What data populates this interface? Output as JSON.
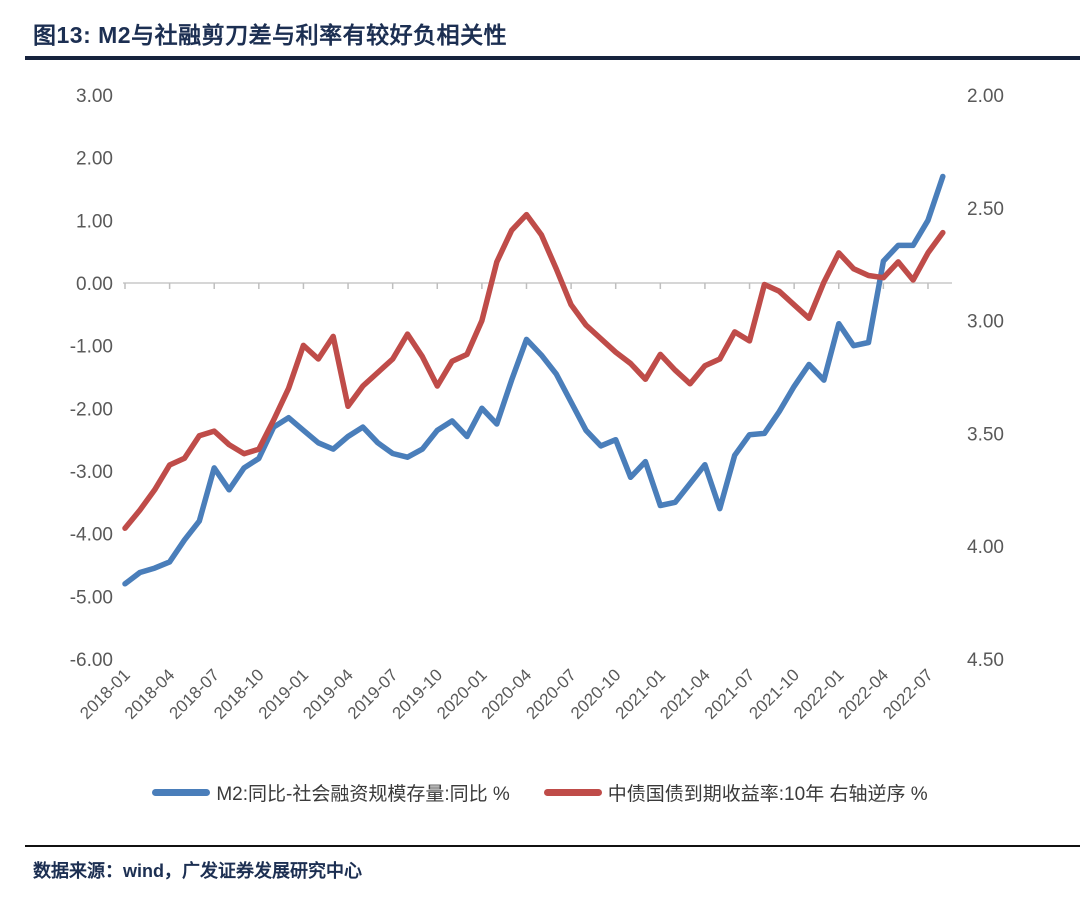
{
  "header": {
    "title": "图13:  M2与社融剪刀差与利率有较好负相关性"
  },
  "legend": {
    "items": [
      {
        "label": "M2:同比-社会融资规模存量:同比  %",
        "color": "#4a7eba"
      },
      {
        "label": "中债国债到期收益率:10年 右轴逆序 %",
        "color": "#bf4c49"
      }
    ]
  },
  "footer": {
    "source": "数据来源：wind，广发证券发展研究中心"
  },
  "colors": {
    "title": "#1c2f52",
    "axis_label": "#595959",
    "axis_line": "#d6d6d6",
    "tick_mark": "#bfbfbf",
    "series_blue": "#4a7eba",
    "series_red": "#bf4c49"
  },
  "chart_data": {
    "type": "line",
    "title": "M2与社融剪刀差与利率有较好负相关性",
    "x": [
      "2018-01",
      "2018-02",
      "2018-03",
      "2018-04",
      "2018-05",
      "2018-06",
      "2018-07",
      "2018-08",
      "2018-09",
      "2018-10",
      "2018-11",
      "2018-12",
      "2019-01",
      "2019-02",
      "2019-03",
      "2019-04",
      "2019-05",
      "2019-06",
      "2019-07",
      "2019-08",
      "2019-09",
      "2019-10",
      "2019-11",
      "2019-12",
      "2020-01",
      "2020-02",
      "2020-03",
      "2020-04",
      "2020-05",
      "2020-06",
      "2020-07",
      "2020-08",
      "2020-09",
      "2020-10",
      "2020-11",
      "2020-12",
      "2021-01",
      "2021-02",
      "2021-03",
      "2021-04",
      "2021-05",
      "2021-06",
      "2021-07",
      "2021-08",
      "2021-09",
      "2021-10",
      "2021-11",
      "2021-12",
      "2022-01",
      "2022-02",
      "2022-03",
      "2022-04",
      "2022-05",
      "2022-06",
      "2022-07",
      "2022-08"
    ],
    "x_tick_labels": [
      "2018-01",
      "2018-04",
      "2018-07",
      "2018-10",
      "2019-01",
      "2019-04",
      "2019-07",
      "2019-10",
      "2020-01",
      "2020-04",
      "2020-07",
      "2020-10",
      "2021-01",
      "2021-04",
      "2021-07",
      "2021-10",
      "2022-01",
      "2022-04",
      "2022-07"
    ],
    "series": [
      {
        "name": "M2:同比-社会融资规模存量:同比  %",
        "axis": "left",
        "color": "#4a7eba",
        "values": [
          -4.8,
          -4.62,
          -4.55,
          -4.45,
          -4.1,
          -3.8,
          -2.95,
          -3.3,
          -2.95,
          -2.8,
          -2.3,
          -2.15,
          -2.35,
          -2.55,
          -2.65,
          -2.45,
          -2.3,
          -2.55,
          -2.72,
          -2.78,
          -2.65,
          -2.35,
          -2.2,
          -2.45,
          -2.0,
          -2.25,
          -1.55,
          -0.9,
          -1.15,
          -1.45,
          -1.9,
          -2.35,
          -2.6,
          -2.5,
          -3.1,
          -2.85,
          -3.55,
          -3.5,
          -3.2,
          -2.9,
          -3.6,
          -2.75,
          -2.42,
          -2.4,
          -2.05,
          -1.65,
          -1.3,
          -1.55,
          -0.65,
          -1.0,
          -0.95,
          0.35,
          0.6,
          0.6,
          1.0,
          1.7
        ]
      },
      {
        "name": "中债国债到期收益率:10年 右轴逆序 %",
        "axis": "right",
        "color": "#bf4c49",
        "values": [
          3.92,
          3.84,
          3.75,
          3.64,
          3.61,
          3.51,
          3.49,
          3.55,
          3.59,
          3.57,
          3.44,
          3.3,
          3.11,
          3.17,
          3.07,
          3.38,
          3.29,
          3.23,
          3.17,
          3.06,
          3.16,
          3.29,
          3.18,
          3.15,
          3.0,
          2.74,
          2.6,
          2.53,
          2.62,
          2.77,
          2.93,
          3.02,
          3.08,
          3.14,
          3.19,
          3.26,
          3.15,
          3.22,
          3.28,
          3.2,
          3.17,
          3.05,
          3.09,
          2.84,
          2.87,
          2.93,
          2.99,
          2.83,
          2.7,
          2.77,
          2.8,
          2.81,
          2.74,
          2.82,
          2.7,
          2.61
        ]
      }
    ],
    "left_axis": {
      "min": -6.0,
      "max": 3.0,
      "tick_labels": [
        "3.00",
        "2.00",
        "1.00",
        "0.00",
        "-1.00",
        "-2.00",
        "-3.00",
        "-4.00",
        "-5.00",
        "-6.00"
      ]
    },
    "right_axis": {
      "min": 2.0,
      "max": 4.5,
      "reversed": true,
      "tick_labels": [
        "2.00",
        "2.50",
        "3.00",
        "3.50",
        "4.00",
        "4.50"
      ]
    },
    "grid": "zero-line-only",
    "legend_position": "bottom"
  }
}
